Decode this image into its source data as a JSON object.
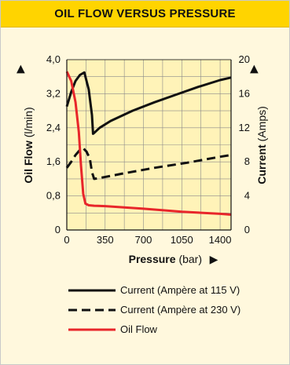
{
  "title": "OIL FLOW VERSUS PRESSURE",
  "colors": {
    "header": "#ffd400",
    "panel": "#fff8dd",
    "oil": "#e8262a",
    "current": "#111111"
  },
  "chart_data": {
    "type": "line",
    "xlabel": {
      "bold": "Pressure",
      "unit": "(bar)"
    },
    "ylabel_left": {
      "bold": "Oil Flow",
      "unit": "(l/min)"
    },
    "ylabel_right": {
      "bold": "Current",
      "unit": "(Amps)"
    },
    "xlim": [
      0,
      1500
    ],
    "ylim_left": [
      0,
      4.0
    ],
    "ylim_right": [
      0,
      20
    ],
    "xticks": [
      "0",
      "350",
      "700",
      "1050",
      "1400"
    ],
    "xtick_values": [
      0,
      350,
      700,
      1050,
      1400
    ],
    "yticks_left": [
      "0",
      "0,8",
      "1,6",
      "2,4",
      "3,2",
      "4,0"
    ],
    "ytick_values_left": [
      0,
      0.8,
      1.6,
      2.4,
      3.2,
      4.0
    ],
    "yticks_right": [
      "0",
      "4",
      "8",
      "12",
      "16",
      "20"
    ],
    "ytick_values_right": [
      0,
      4,
      8,
      12,
      16,
      20
    ],
    "grid": true,
    "series": [
      {
        "name": "Current (Ampère at 115 V)",
        "axis": "right",
        "style": "solid",
        "color": "#111111",
        "x": [
          0,
          40,
          80,
          120,
          160,
          200,
          230,
          240,
          250,
          300,
          400,
          600,
          800,
          1000,
          1200,
          1400,
          1500
        ],
        "y": [
          14.5,
          16.2,
          17.5,
          18.2,
          18.5,
          16.5,
          13.5,
          11.3,
          11.4,
          12.0,
          12.8,
          14.0,
          15.0,
          15.9,
          16.8,
          17.6,
          17.9
        ]
      },
      {
        "name": "Current (Ampère at 230 V)",
        "axis": "right",
        "style": "dashed",
        "color": "#111111",
        "x": [
          0,
          40,
          80,
          120,
          150,
          180,
          210,
          230,
          250,
          300,
          500,
          800,
          1100,
          1400,
          1500
        ],
        "y": [
          7.3,
          8.0,
          8.8,
          9.4,
          9.6,
          9.2,
          8.4,
          6.8,
          6.0,
          6.1,
          6.6,
          7.3,
          7.9,
          8.6,
          8.8
        ]
      },
      {
        "name": "Oil Flow",
        "axis": "left",
        "style": "solid",
        "color": "#e8262a",
        "x": [
          0,
          40,
          80,
          110,
          130,
          150,
          170,
          200,
          250,
          350,
          700,
          1050,
          1400,
          1500
        ],
        "y": [
          3.72,
          3.5,
          3.0,
          2.3,
          1.5,
          0.85,
          0.62,
          0.58,
          0.57,
          0.56,
          0.5,
          0.43,
          0.38,
          0.36
        ]
      }
    ],
    "axis_arrow": "▶"
  }
}
